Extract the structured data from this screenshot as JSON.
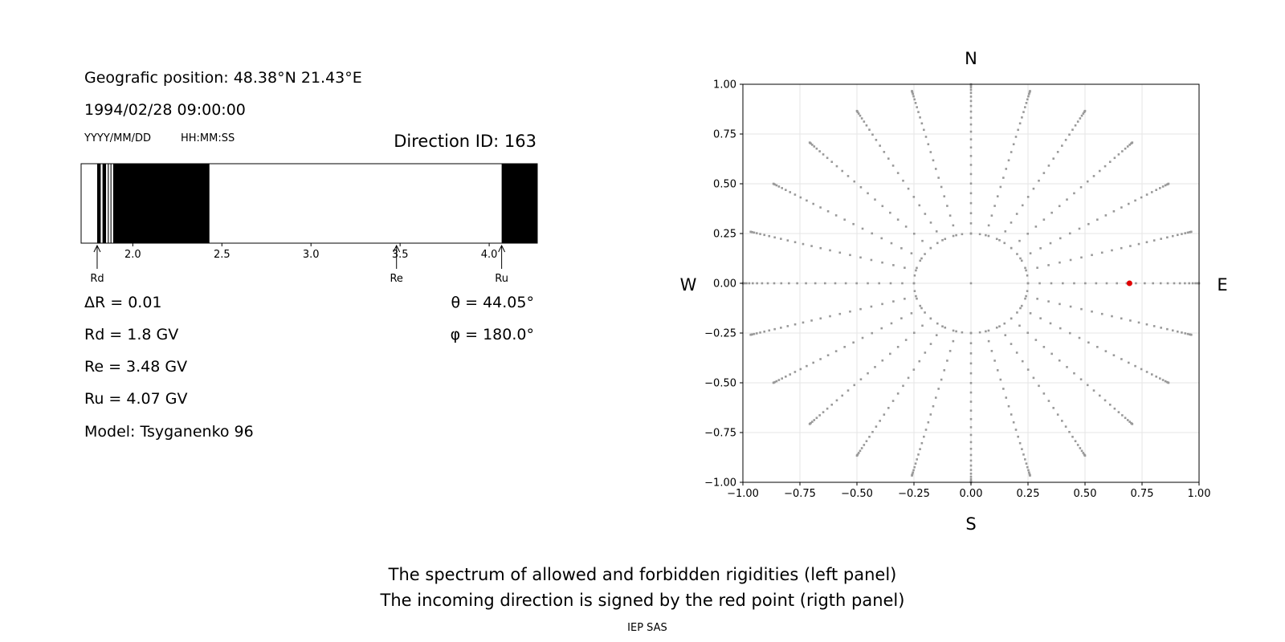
{
  "left_panel": {
    "position_text": "Geografic position: 48.38°N 21.43°E",
    "datetime_text": "1994/02/28 09:00:00",
    "date_format_label": "YYYY/MM/DD",
    "time_format_label": "HH:MM:SS",
    "direction_id_text": "Direction ID: 163",
    "delta_r_text": "ΔR = 0.01",
    "rd_text": "Rd = 1.8 GV",
    "re_text": "Re = 3.48 GV",
    "ru_text": "Ru = 4.07 GV",
    "model_text": "Model: Tsyganenko 96",
    "theta_text": "θ = 44.05°",
    "phi_text": "φ = 180.0°"
  },
  "footer": {
    "caption_line1": "The spectrum of allowed and forbidden rigidities (left panel)",
    "caption_line2": "The incoming direction is signed by the red point (rigth panel)",
    "institution": "IEP SAS"
  },
  "colors": {
    "forbidden": "#000000",
    "allowed": "#ffffff",
    "grid_points": "#999999",
    "direction_point": "#e00000"
  },
  "chart_data": [
    {
      "type": "bar",
      "name_id": "rigidity-spectrum",
      "xlim": [
        1.71,
        4.27
      ],
      "x_ticks": [
        2.0,
        2.5,
        3.0,
        3.5,
        4.0
      ],
      "x_tick_labels": [
        "2.0",
        "2.5",
        "3.0",
        "3.5",
        "4.0"
      ],
      "forbidden_intervals": [
        [
          1.8,
          1.82
        ],
        [
          1.83,
          1.85
        ],
        [
          1.86,
          1.865
        ],
        [
          1.875,
          1.88
        ],
        [
          1.89,
          2.43
        ],
        [
          4.07,
          4.27
        ]
      ],
      "markers": [
        {
          "label": "Rd",
          "value": 1.8
        },
        {
          "label": "Re",
          "value": 3.48
        },
        {
          "label": "Ru",
          "value": 4.07
        }
      ]
    },
    {
      "type": "scatter",
      "name_id": "asymptotic-directions",
      "xlim": [
        -1.0,
        1.0
      ],
      "ylim": [
        -1.0,
        1.0
      ],
      "x_ticks": [
        -1.0,
        -0.75,
        -0.5,
        -0.25,
        0.0,
        0.25,
        0.5,
        0.75,
        1.0
      ],
      "x_tick_labels": [
        "−1.00",
        "−0.75",
        "−0.50",
        "−0.25",
        "0.00",
        "0.25",
        "0.50",
        "0.75",
        "1.00"
      ],
      "y_ticks": [
        1.0,
        0.75,
        0.5,
        0.25,
        0.0,
        -0.25,
        -0.5,
        -0.75,
        -1.0
      ],
      "y_tick_labels": [
        "1.00",
        "0.75",
        "0.50",
        "0.25",
        "0.00",
        "−0.25",
        "−0.50",
        "−0.75",
        "−1.00"
      ],
      "grid": true,
      "compass": {
        "north": "N",
        "south": "S",
        "west": "W",
        "east": "E"
      },
      "point_grid": {
        "center": [
          0.0,
          0.0
        ],
        "inner_ring_radius": 0.25,
        "inner_ring_points": 40,
        "spoke_count": 24,
        "spoke_radius_start": 0.25,
        "spoke_radius_end": 1.0,
        "spoke_points": 24
      },
      "highlighted_point": {
        "x": 0.695,
        "y": 0.0
      }
    }
  ]
}
